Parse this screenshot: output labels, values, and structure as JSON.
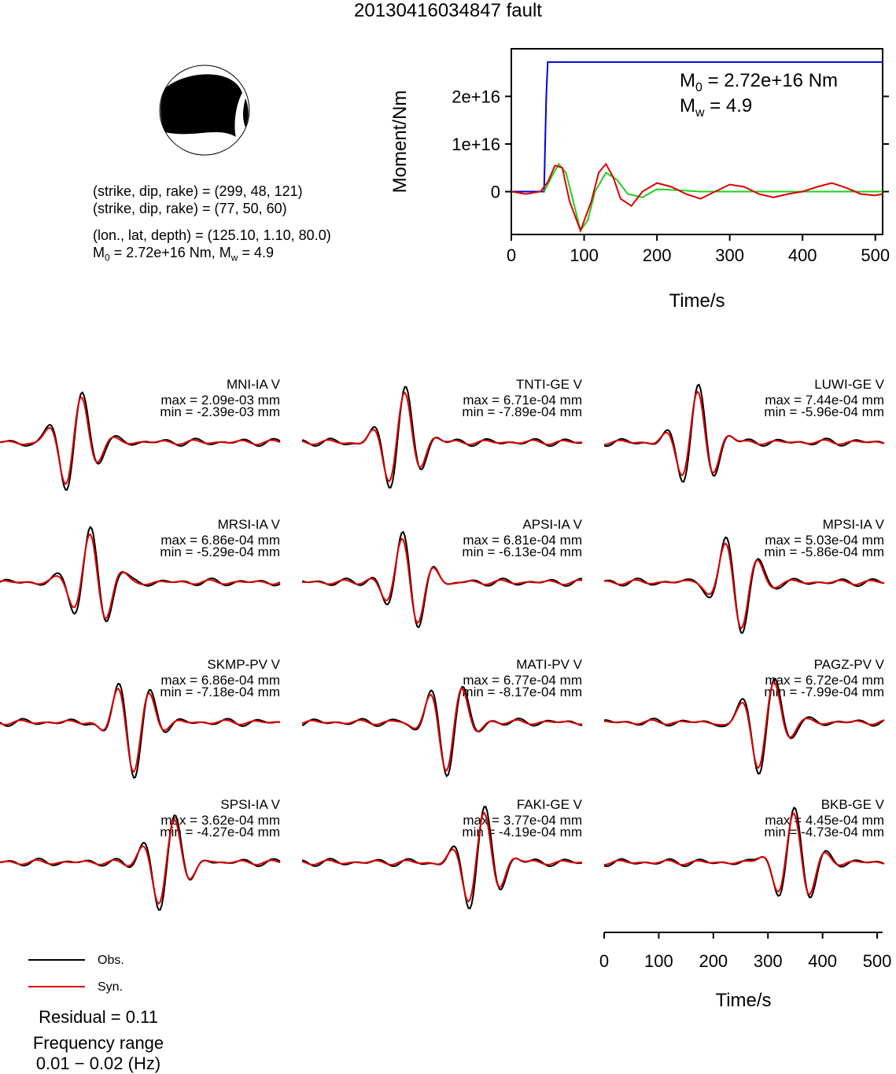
{
  "title": "20130416034847 fault",
  "mechanism": {
    "plane1": "(strike, dip, rake) = (299, 48, 121)",
    "plane2": "(strike, dip, rake) = (77, 50, 60)",
    "location": "(lon., lat, depth) = (125.10, 1.10, 80.0)",
    "m0_prefix": "M",
    "m0_sub": "0",
    "m0_mid": " = 2.72e+16 Nm, M",
    "mw_sub": "w",
    "mw_value": " = 4.9"
  },
  "chart_data": [
    {
      "type": "line",
      "ylabel": "Moment/Nm",
      "xlabel": "Time/s",
      "xticks": [
        "0",
        "100",
        "200",
        "300",
        "400",
        "500"
      ],
      "yticks": [
        "0",
        "1e+16",
        "2e+16"
      ],
      "xlim": [
        0,
        510
      ],
      "annotation_m0_prefix": "M",
      "annotation_m0_sub": "0",
      "annotation_m0_value": " = 2.72e+16 Nm",
      "annotation_mw_prefix": "M",
      "annotation_mw_sub": "w",
      "annotation_mw_value": " = 4.9",
      "series": [
        {
          "color": "#0000dd",
          "x": [
            0,
            45,
            48,
            50,
            510
          ],
          "y": [
            0,
            0,
            2e+16,
            2.72e+16,
            2.72e+16
          ]
        },
        {
          "color": "#22cc22",
          "x": [
            45,
            55,
            65,
            75,
            85,
            95,
            105,
            115,
            130,
            145,
            160,
            180,
            200,
            230,
            260,
            510
          ],
          "y": [
            0,
            3000000000000000.0,
            5800000000000000.0,
            4000000000000000.0,
            -2000000000000000.0,
            -8200000000000000.0,
            -6000000000000000.0,
            0.0,
            4000000000000000.0,
            2500000000000000.0,
            -500000000000000.0,
            -1200000000000000.0,
            500000000000000.0,
            300000000000000.0,
            0,
            0
          ]
        },
        {
          "color": "#dd0000",
          "x": [
            0,
            20,
            40,
            50,
            60,
            70,
            80,
            95,
            110,
            120,
            130,
            140,
            150,
            165,
            180,
            200,
            220,
            240,
            260,
            280,
            300,
            320,
            340,
            360,
            380,
            400,
            420,
            440,
            460,
            480,
            500,
            510
          ],
          "y": [
            0,
            -500000000000000.0,
            0,
            2000000000000000.0,
            5500000000000000.0,
            5000000000000000.0,
            -2000000000000000.0,
            -8200000000000000.0,
            -2000000000000000.0,
            4000000000000000.0,
            5800000000000000.0,
            3000000000000000.0,
            -1500000000000000.0,
            -3000000000000000.0,
            0,
            1800000000000000.0,
            1000000000000000.0,
            -500000000000000.0,
            -1500000000000000.0,
            0,
            1500000000000000.0,
            1000000000000000.0,
            -500000000000000.0,
            -1200000000000000.0,
            -500000000000000.0,
            0,
            1000000000000000.0,
            1800000000000000.0,
            800000000000000.0,
            -500000000000000.0,
            -800000000000000.0,
            -500000000000000.0
          ]
        }
      ]
    },
    {
      "type": "line",
      "xlabel": "Time/s",
      "xticks": [
        "0",
        "100",
        "200",
        "300",
        "400",
        "500"
      ],
      "xlim": [
        0,
        510
      ],
      "stations": [
        {
          "name": "MNI-IA V",
          "max": "max = 2.09e-03 mm",
          "min": "min = -2.39e-03 mm",
          "peak": 135
        },
        {
          "name": "TNTI-GE V",
          "max": "max = 6.71e-04 mm",
          "min": "min = -7.89e-04 mm",
          "peak": 180
        },
        {
          "name": "LUWI-GE V",
          "max": "max = 7.44e-04 mm",
          "min": "min = -5.96e-04 mm",
          "peak": 170
        },
        {
          "name": "MRSI-IA V",
          "max": "max = 6.86e-04 mm",
          "min": "min = -5.29e-04 mm",
          "peak": 170
        },
        {
          "name": "APSI-IA V",
          "max": "max = 6.81e-04 mm",
          "min": "min = -6.13e-04 mm",
          "peak": 195
        },
        {
          "name": "MPSI-IA V",
          "max": "max = 5.03e-04 mm",
          "min": "min = -5.86e-04 mm",
          "peak": 240
        },
        {
          "name": "SKMP-PV V",
          "max": "max = 6.86e-04 mm",
          "min": "min = -7.18e-04 mm",
          "peak": 240
        },
        {
          "name": "MATI-PV V",
          "max": "max = 6.77e-04 mm",
          "min": "min = -8.17e-04 mm",
          "peak": 265
        },
        {
          "name": "PAGZ-PV V",
          "max": "max = 6.72e-04 mm",
          "min": "min = -7.99e-04 mm",
          "peak": 290
        },
        {
          "name": "SPSI-IA V",
          "max": "max = 3.62e-04 mm",
          "min": "min = -4.27e-04 mm",
          "peak": 305
        },
        {
          "name": "FAKI-GE V",
          "max": "max = 3.77e-04 mm",
          "min": "min = -4.19e-04 mm",
          "peak": 325
        },
        {
          "name": "BKB-GE V",
          "max": "max = 4.45e-04 mm",
          "min": "min = -4.73e-04 mm",
          "peak": 345
        }
      ]
    }
  ],
  "legend": {
    "obs_label": "Obs.",
    "syn_label": "Syn.",
    "obs_color": "#000000",
    "syn_color": "#dd0000"
  },
  "residual": "Residual = 0.11",
  "freq_label": "Frequency range",
  "freq_value": "0.01 − 0.02 (Hz)"
}
